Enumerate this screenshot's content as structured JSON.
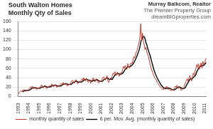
{
  "chart_data": {
    "type": "line",
    "title": "South Walton Homes",
    "subtitle": "Monthly Qty of Sales",
    "annotations": [
      "Murray Balkcom, Realtor",
      "The Premier Property Group",
      "dreamBIGproperties.com"
    ],
    "categories": [
      "1993",
      null,
      null,
      null,
      null,
      null,
      null,
      null,
      null,
      null,
      null,
      null,
      "1994",
      null,
      null,
      null,
      null,
      null,
      null,
      null,
      null,
      null,
      null,
      null,
      "1995",
      null,
      null,
      null,
      null,
      null,
      null,
      null,
      null,
      null,
      null,
      null,
      "1996",
      null,
      null,
      null,
      null,
      null,
      null,
      null,
      null,
      null,
      null,
      null,
      "1997",
      null,
      null,
      null,
      null,
      null,
      null,
      null,
      null,
      null,
      null,
      null,
      "1998",
      null,
      null,
      null,
      null,
      null,
      null,
      null,
      null,
      null,
      null,
      null,
      "1999",
      null,
      null,
      null,
      null,
      null,
      null,
      null,
      null,
      null,
      null,
      null,
      "2000",
      null,
      null,
      null,
      null,
      null,
      null,
      null,
      null,
      null,
      null,
      null,
      "2001",
      null,
      null,
      null,
      null,
      null,
      null,
      null,
      null,
      null,
      null,
      null,
      "2002",
      null,
      null,
      null,
      null,
      null,
      null,
      null,
      null,
      null,
      null,
      null,
      "2003",
      null,
      null,
      null,
      null,
      null,
      null,
      null,
      null,
      null,
      null,
      null,
      "2004",
      null,
      null,
      null,
      null,
      null,
      null,
      null,
      null,
      null,
      null,
      null,
      "2005",
      null,
      null,
      null,
      null,
      null,
      null,
      null,
      null,
      null,
      null,
      null,
      "2006",
      null,
      null,
      null,
      null,
      null,
      null,
      null,
      null,
      null,
      null,
      null,
      "2007",
      null,
      null,
      null,
      null,
      null,
      null,
      null,
      null,
      null,
      null,
      null,
      "2008",
      null,
      null,
      null,
      null,
      null,
      null,
      null,
      null,
      null,
      null,
      null,
      "2009",
      null,
      null,
      null,
      null,
      null,
      null,
      null,
      null,
      null,
      null,
      null,
      "2010",
      null,
      null,
      null,
      null,
      null,
      null,
      null,
      null,
      null,
      null,
      null,
      "2011",
      null,
      null
    ],
    "series": [
      {
        "name": "monthly quantity of sales",
        "color": "#c0392b",
        "values": [
          5,
          8,
          10,
          12,
          10,
          14,
          12,
          15,
          13,
          11,
          14,
          12,
          15,
          18,
          20,
          17,
          22,
          19,
          16,
          20,
          18,
          15,
          17,
          19,
          16,
          20,
          22,
          25,
          21,
          18,
          22,
          24,
          19,
          17,
          20,
          22,
          20,
          24,
          22,
          27,
          25,
          21,
          23,
          26,
          22,
          19,
          21,
          24,
          22,
          26,
          28,
          24,
          30,
          27,
          25,
          29,
          26,
          22,
          24,
          27,
          25,
          30,
          33,
          35,
          31,
          28,
          34,
          36,
          30,
          27,
          29,
          32,
          30,
          35,
          38,
          34,
          40,
          36,
          33,
          39,
          35,
          30,
          33,
          36,
          28,
          33,
          37,
          40,
          35,
          31,
          36,
          38,
          32,
          29,
          30,
          34,
          31,
          36,
          40,
          42,
          38,
          35,
          41,
          44,
          33,
          30,
          36,
          40,
          38,
          44,
          50,
          47,
          53,
          49,
          45,
          52,
          48,
          43,
          46,
          51,
          50,
          58,
          64,
          60,
          66,
          62,
          58,
          70,
          65,
          60,
          68,
          72,
          70,
          78,
          85,
          82,
          90,
          95,
          100,
          108,
          115,
          125,
          155,
          120,
          135,
          118,
          110,
          100,
          105,
          95,
          90,
          85,
          75,
          68,
          60,
          55,
          50,
          45,
          40,
          38,
          35,
          30,
          28,
          25,
          22,
          20,
          18,
          16,
          14,
          16,
          20,
          18,
          22,
          17,
          15,
          18,
          14,
          12,
          13,
          15,
          14,
          18,
          22,
          20,
          24,
          19,
          17,
          21,
          16,
          13,
          15,
          18,
          20,
          26,
          30,
          35,
          38,
          32,
          40,
          45,
          38,
          33,
          42,
          50,
          45,
          55,
          60,
          68,
          62,
          70,
          58,
          65,
          72,
          60,
          75,
          68,
          70,
          78,
          82
        ]
      },
      {
        "name": "6 per. Mov. Avg. (monthly quantity of sales)",
        "color": "#000000",
        "values": [
          null,
          null,
          null,
          null,
          null,
          9.8,
          11,
          12.2,
          12.7,
          12.5,
          13.2,
          12.8,
          13.3,
          13.8,
          15,
          16,
          17.3,
          18.5,
          18.7,
          19,
          18.7,
          18.3,
          17.5,
          17.5,
          17.5,
          17.5,
          18.2,
          19.8,
          20.5,
          20.3,
          21.3,
          22,
          21.5,
          20.2,
          20,
          20.7,
          20.3,
          20.3,
          20.8,
          22.5,
          23.3,
          23.2,
          23.7,
          24,
          24,
          22.7,
          22,
          22.5,
          22.3,
          22.3,
          23.3,
          24.2,
          25.7,
          26.2,
          26.7,
          27.2,
          26.8,
          26.5,
          25.5,
          25.5,
          25.5,
          25.7,
          26.8,
          29,
          30.2,
          30.3,
          31.8,
          32.8,
          32.3,
          31,
          30.7,
          31.3,
          30.7,
          30.5,
          31.8,
          33,
          34.8,
          35.5,
          36,
          36.7,
          36.2,
          35.5,
          34.3,
          34.3,
          33.5,
          32.5,
          32.8,
          34.5,
          34.8,
          34,
          35.3,
          36.2,
          35.3,
          33.5,
          32.7,
          33.2,
          32.3,
          32,
          33.3,
          35.5,
          36.8,
          37,
          38.7,
          40,
          38.8,
          36.8,
          36.5,
          37.3,
          36.8,
          36.8,
          39.7,
          42.5,
          45.3,
          46.8,
          48,
          49.3,
          49,
          48.3,
          47.2,
          47.5,
          48.3,
          49.3,
          52,
          54.8,
          58.2,
          60,
          61.3,
          63.3,
          63.5,
          63.5,
          63.8,
          65.5,
          67.5,
          68.8,
          72.2,
          75.8,
          79.5,
          83.3,
          88.3,
          93.3,
          98.3,
          105.5,
          116.3,
          120.5,
          126.3,
          128,
          127.2,
          123,
          114.7,
          110.5,
          103,
          97.5,
          91.7,
          86.3,
          78.8,
          72.2,
          65.5,
          58.8,
          53,
          48,
          43.8,
          39.7,
          36,
          32.7,
          29.7,
          26.7,
          23.8,
          21.5,
          19.2,
          17.7,
          17.3,
          17,
          17.7,
          17.8,
          18,
          18.3,
          17.3,
          16.3,
          14.8,
          14.5,
          14.3,
          14.3,
          15.7,
          17,
          18.8,
          19.5,
          20,
          20.5,
          19.5,
          18.3,
          16.8,
          16.7,
          17.2,
          18,
          20.3,
          24,
          27.8,
          30.2,
          33.5,
          36.7,
          38,
          37.7,
          38.3,
          41.3,
          42.2,
          43.8,
          47.5,
          53.3,
          56.7,
          60,
          62.2,
          63.8,
          65.8,
          64.5,
          66.7,
          66.3,
          68.3,
          70.5,
          72.2
        ]
      }
    ],
    "ylim": [
      0,
      160
    ],
    "yticks": [
      0,
      20,
      40,
      60,
      80,
      100,
      120,
      140,
      160
    ],
    "grid": true,
    "legend": "bottom"
  }
}
